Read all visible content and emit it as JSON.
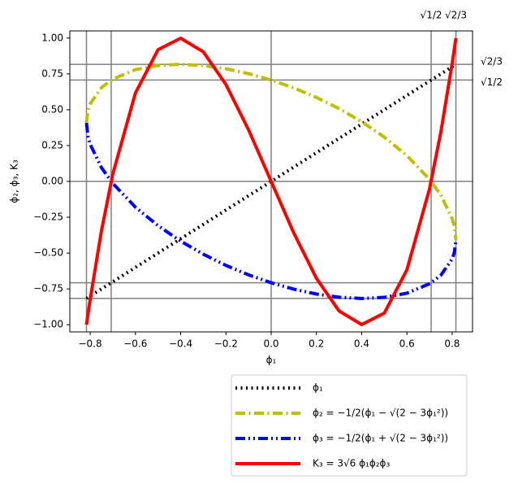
{
  "chart_data": {
    "type": "line",
    "xlabel": "ϕ₁",
    "ylabel": "ϕ₂, ϕ₃, K₃",
    "x": [
      -0.8165,
      -0.81,
      -0.8,
      -0.75,
      -0.7,
      -0.6,
      -0.5,
      -0.4,
      -0.3,
      -0.2,
      -0.1,
      0,
      0.1,
      0.2,
      0.3,
      0.4,
      0.5,
      0.6,
      0.7,
      0.75,
      0.8,
      0.81,
      0.8165
    ],
    "series": [
      {
        "name": "ϕ₁",
        "color": "#000000",
        "linestyle": "dotted",
        "values": [
          -0.8165,
          -0.81,
          -0.8,
          -0.75,
          -0.7,
          -0.6,
          -0.5,
          -0.4,
          -0.3,
          -0.2,
          -0.1,
          0,
          0.1,
          0.2,
          0.3,
          0.4,
          0.5,
          0.6,
          0.7,
          0.75,
          0.8,
          0.81,
          0.8165
        ]
      },
      {
        "name": "ϕ₂ = −1/2(ϕ₁ − √(2 − 3ϕ₁²))",
        "color": "#bfbf00",
        "linestyle": "dashdot",
        "values": [
          0.408,
          0.494,
          0.541,
          0.655,
          0.714,
          0.78,
          0.809,
          0.817,
          0.808,
          0.786,
          0.752,
          0.707,
          0.652,
          0.586,
          0.508,
          0.417,
          0.309,
          0.18,
          0.014,
          -0.0955,
          -0.259,
          -0.316,
          -0.408
        ]
      },
      {
        "name": "ϕ₃ = −1/2(ϕ₁ + √(2 − 3ϕ₁²))",
        "color": "#0000ff",
        "linestyle": "dashdotdot",
        "values": [
          0.408,
          0.316,
          0.259,
          0.0955,
          -0.014,
          -0.18,
          -0.309,
          -0.417,
          -0.508,
          -0.586,
          -0.652,
          -0.707,
          -0.752,
          -0.786,
          -0.808,
          -0.817,
          -0.809,
          -0.78,
          -0.714,
          -0.655,
          -0.541,
          -0.494,
          -0.408
        ]
      },
      {
        "name": "K₃ = 3√6 ϕ₁ϕ₂ϕ₃",
        "color": "#ff0000",
        "linestyle": "solid",
        "values": [
          -1.0,
          -0.929,
          -0.823,
          -0.344,
          0.0514,
          0.617,
          0.919,
          0.999,
          0.904,
          0.676,
          0.36,
          0,
          -0.36,
          -0.676,
          -0.904,
          -0.999,
          -0.919,
          -0.617,
          -0.0514,
          0.344,
          0.823,
          0.929,
          1.0
        ]
      }
    ],
    "xlim": [
      -0.89,
      0.89
    ],
    "ylim": [
      -1.05,
      1.05
    ],
    "xticks": [
      {
        "value": -0.8,
        "label": "−0.8"
      },
      {
        "value": -0.6,
        "label": "−0.6"
      },
      {
        "value": -0.4,
        "label": "−0.4"
      },
      {
        "value": -0.2,
        "label": "−0.2"
      },
      {
        "value": 0,
        "label": "0.0"
      },
      0.2,
      0.4,
      0.6,
      0.8
    ],
    "yticks": [
      {
        "value": -1,
        "label": "−1.00"
      },
      {
        "value": -0.75,
        "label": "−0.75"
      },
      {
        "value": -0.5,
        "label": "−0.50"
      },
      {
        "value": -0.25,
        "label": "−0.25"
      },
      {
        "value": 0,
        "label": "0.00"
      },
      0.25,
      {
        "value": 0.5,
        "label": "0.50"
      },
      0.75,
      {
        "value": 1,
        "label": "1.00"
      }
    ],
    "vlines": [
      -0.8165,
      -0.7071,
      0,
      0.7071,
      0.8165
    ],
    "hlines": [
      -0.8165,
      -0.7071,
      0,
      0.7071,
      0.8165
    ],
    "top_labels": [
      {
        "value": 0.7071,
        "label": "√1/2"
      },
      {
        "value": 0.8165,
        "label": "√2/3"
      }
    ],
    "right_labels": [
      {
        "value": 0.8165,
        "label": "√2/3"
      },
      {
        "value": 0.7071,
        "label": "√1/2"
      }
    ],
    "legend": "below"
  }
}
